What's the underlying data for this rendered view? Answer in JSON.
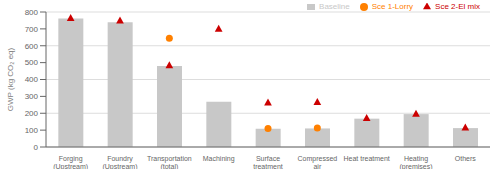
{
  "chart_data": {
    "type": "bar",
    "categories": [
      "Forging\n(Upstream)",
      "Foundry\n(Upstream)",
      "Transportation\n(total)",
      "Machining",
      "Surface\ntreatment",
      "Compressed\nair",
      "Heat treatment",
      "Heating\n(premises)",
      "Others"
    ],
    "series": [
      {
        "name": "Baseline",
        "type": "bar",
        "color": "#c8c8c8",
        "values": [
          762,
          740,
          480,
          268,
          108,
          110,
          168,
          195,
          112
        ]
      },
      {
        "name": "Sce 1-Lorry",
        "type": "scatter",
        "marker": "circle",
        "color": "#ff8000",
        "values": [
          null,
          null,
          645,
          null,
          110,
          112,
          null,
          null,
          null
        ]
      },
      {
        "name": "Sce 2-El mix",
        "type": "scatter",
        "marker": "triangle",
        "color": "#cc0000",
        "values": [
          764,
          748,
          483,
          700,
          262,
          265,
          170,
          196,
          114
        ]
      }
    ],
    "ylabel": "GWP (kg CO₂ eq)",
    "ylim": [
      0,
      800
    ],
    "yticks": [
      0,
      100,
      200,
      300,
      400,
      500,
      600,
      700,
      800
    ],
    "grid": true,
    "legend": "upper right"
  }
}
